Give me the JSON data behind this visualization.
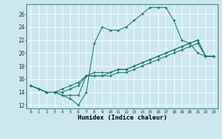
{
  "title": "",
  "xlabel": "Humidex (Indice chaleur)",
  "ylabel": "",
  "xlim": [
    -0.5,
    23.5
  ],
  "ylim": [
    11.5,
    27.5
  ],
  "xticks": [
    0,
    1,
    2,
    3,
    4,
    5,
    6,
    7,
    8,
    9,
    10,
    11,
    12,
    13,
    14,
    15,
    16,
    17,
    18,
    19,
    20,
    21,
    22,
    23
  ],
  "yticks": [
    12,
    14,
    16,
    18,
    20,
    22,
    24,
    26
  ],
  "bg_color": "#cce8ee",
  "line_color": "#1a7a6e",
  "grid_color": "#ffffff",
  "lines": [
    [
      15.0,
      14.5,
      14.0,
      14.0,
      13.5,
      13.0,
      12.0,
      14.0,
      21.5,
      24.0,
      23.5,
      23.5,
      24.0,
      25.0,
      26.0,
      27.0,
      27.0,
      27.0,
      25.0,
      22.0,
      21.5,
      20.0,
      19.5,
      19.5
    ],
    [
      15.0,
      14.5,
      14.0,
      14.0,
      13.5,
      13.5,
      13.5,
      16.5,
      17.0,
      17.0,
      17.0,
      17.5,
      17.5,
      18.0,
      18.5,
      19.0,
      19.5,
      20.0,
      20.5,
      21.0,
      21.5,
      22.0,
      19.5,
      19.5
    ],
    [
      15.0,
      14.5,
      14.0,
      14.0,
      14.0,
      14.5,
      15.0,
      16.5,
      16.5,
      16.5,
      16.5,
      17.0,
      17.0,
      17.5,
      18.0,
      18.5,
      19.0,
      19.5,
      20.0,
      20.5,
      21.0,
      21.5,
      19.5,
      19.5
    ],
    [
      15.0,
      14.5,
      14.0,
      14.0,
      14.5,
      15.0,
      15.5,
      16.5,
      16.5,
      16.5,
      17.0,
      17.5,
      17.5,
      18.0,
      18.5,
      19.0,
      19.5,
      20.0,
      20.5,
      21.0,
      21.5,
      22.0,
      19.5,
      19.5
    ]
  ]
}
